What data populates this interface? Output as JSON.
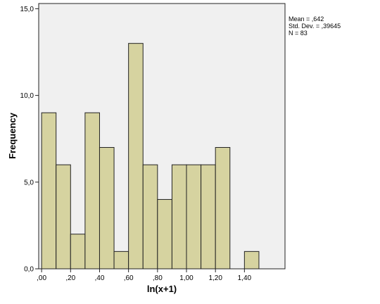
{
  "chart_data": {
    "type": "bar",
    "title": "",
    "xlabel": "ln(x+1)",
    "ylabel": "Frequency",
    "bin_width": 0.1,
    "bins": [
      {
        "x": 0.05,
        "count": 9
      },
      {
        "x": 0.15,
        "count": 6
      },
      {
        "x": 0.25,
        "count": 2
      },
      {
        "x": 0.35,
        "count": 9
      },
      {
        "x": 0.45,
        "count": 7
      },
      {
        "x": 0.55,
        "count": 1
      },
      {
        "x": 0.65,
        "count": 13
      },
      {
        "x": 0.75,
        "count": 6
      },
      {
        "x": 0.85,
        "count": 4
      },
      {
        "x": 0.95,
        "count": 6
      },
      {
        "x": 1.05,
        "count": 6
      },
      {
        "x": 1.15,
        "count": 6
      },
      {
        "x": 1.25,
        "count": 7
      },
      {
        "x": 1.45,
        "count": 1
      }
    ],
    "xlim": [
      -0.02,
      1.68
    ],
    "ylim": [
      0,
      15.3
    ],
    "x_ticks": [
      {
        "value": 0.0,
        "label": ",00"
      },
      {
        "value": 0.2,
        "label": ",20"
      },
      {
        "value": 0.4,
        "label": ",40"
      },
      {
        "value": 0.6,
        "label": ",60"
      },
      {
        "value": 0.8,
        "label": ",80"
      },
      {
        "value": 1.0,
        "label": "1,00"
      },
      {
        "value": 1.2,
        "label": "1,20"
      },
      {
        "value": 1.4,
        "label": "1,40"
      }
    ],
    "y_ticks": [
      {
        "value": 0,
        "label": "0,0"
      },
      {
        "value": 5,
        "label": "5,0"
      },
      {
        "value": 10,
        "label": "10,0"
      },
      {
        "value": 15,
        "label": "15,0"
      }
    ],
    "grid": false,
    "legend": "none",
    "stats": {
      "mean": "Mean = ,642",
      "std_dev": "Std. Dev. = ,39645",
      "n": "N = 83"
    },
    "colors": {
      "bar_fill": "#d6d3a0",
      "bar_stroke": "#222222",
      "plot_background": "#f0f0f0"
    }
  }
}
